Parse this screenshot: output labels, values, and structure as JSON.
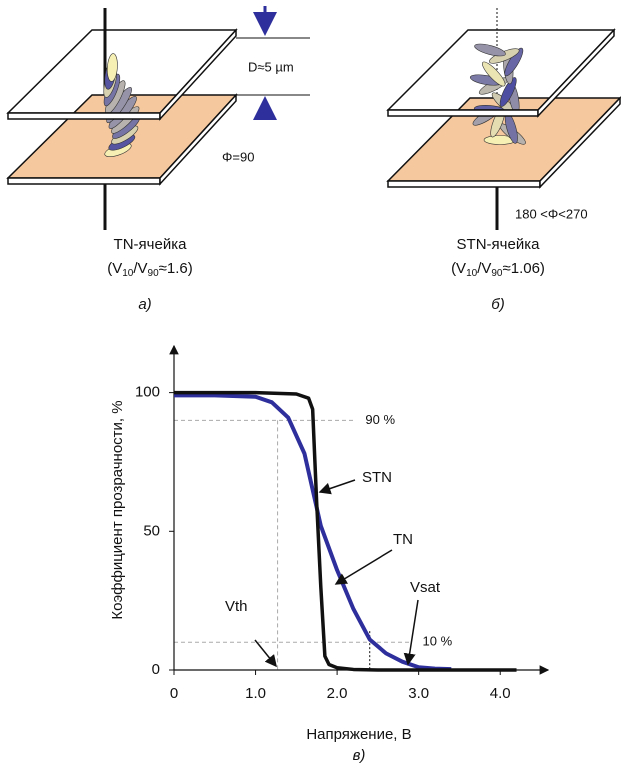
{
  "diagrams": [
    {
      "cell": "TN-ячейка",
      "ratio": [
        "(V",
        "10",
        "/V",
        "90",
        "≈1.6)"
      ],
      "gap": "D≈5 µm",
      "angle": "Φ=90",
      "caption": "а)"
    },
    {
      "cell": "STN-ячейка",
      "ratio": [
        "(V",
        "10",
        "/V",
        "90",
        "≈1.06)"
      ],
      "angle": "180 <Φ<270",
      "caption": "б)"
    }
  ],
  "chart_data": {
    "type": "line",
    "caption": "в)",
    "x_label": "Напряжение, В",
    "y_label": "Коэффициент прозрачности, %",
    "xlim": [
      0,
      4.5
    ],
    "ylim": [
      0,
      115
    ],
    "xticks": [
      0,
      {
        "value": 1,
        "label": "1.0"
      },
      {
        "value": 2,
        "label": "2.0"
      },
      {
        "value": 3,
        "label": "3.0"
      },
      {
        "value": 4,
        "label": "4.0"
      }
    ],
    "yticks": [
      0,
      50,
      100
    ],
    "series": [
      {
        "name": "TN",
        "color": "#2e2e9c",
        "x": [
          0,
          0.5,
          1.0,
          1.2,
          1.4,
          1.6,
          1.8,
          2.0,
          2.2,
          2.4,
          2.6,
          2.8,
          3.0,
          3.2,
          3.4
        ],
        "values": [
          99,
          99,
          98.5,
          96.5,
          91,
          78,
          52,
          36,
          22,
          11,
          6,
          3,
          1,
          0.5,
          0.3
        ]
      },
      {
        "name": "STN",
        "color": "#111111",
        "x": [
          0,
          1.0,
          1.5,
          1.65,
          1.7,
          1.75,
          1.8,
          1.85,
          1.9,
          2.0,
          2.2,
          2.5,
          4.2
        ],
        "values": [
          100,
          100,
          99.5,
          98,
          94,
          60,
          30,
          5,
          2,
          0.8,
          0.2,
          0,
          0
        ]
      }
    ],
    "reference_lines": [
      {
        "y": 90,
        "label": "90 %"
      },
      {
        "y": 10,
        "label": "10 %"
      }
    ],
    "annotations": [
      "STN",
      "TN",
      "Vth",
      "Vsat"
    ],
    "marked_x": [
      1.27,
      2.4
    ]
  }
}
